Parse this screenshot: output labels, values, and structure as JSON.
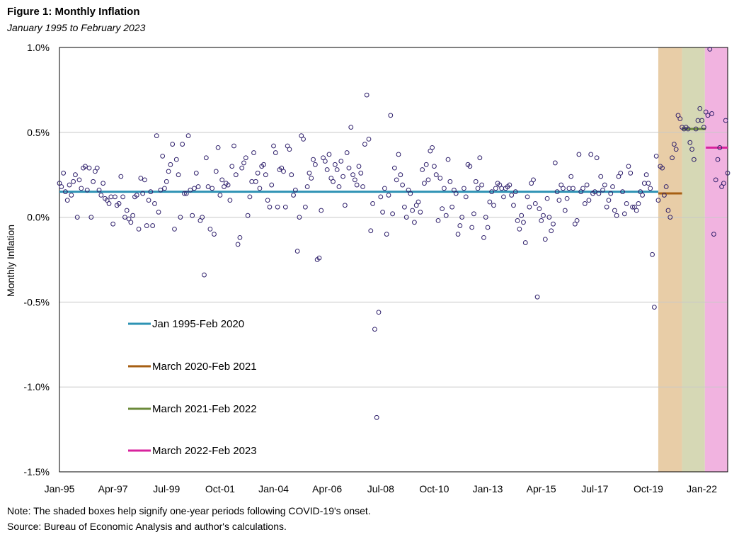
{
  "figure": {
    "title": "Figure 1: Monthly Inflation",
    "subtitle": "January 1995 to February 2023",
    "note": "Note: The shaded boxes help signify one-year periods following COVID-19's onset.",
    "source": "Source: Bureau of Economic Analysis and author's calculations."
  },
  "chart_data": {
    "type": "scatter",
    "title": "Figure 1: Monthly Inflation",
    "subtitle": "January 1995 to February 2023",
    "xlabel": "",
    "ylabel": "Monthly Inflation",
    "x_units": "months since Jan 1995 (0 = Jan 1995)",
    "xlim": [
      0,
      337
    ],
    "ylim": [
      -1.5,
      1.0
    ],
    "y_ticks": [
      1.0,
      0.5,
      0.0,
      -0.5,
      -1.0,
      -1.5
    ],
    "y_tick_labels": [
      "1.0%",
      "0.5%",
      "0.0%",
      "-0.5%",
      "-1.0%",
      "-1.5%"
    ],
    "x_ticks": [
      0,
      27,
      54,
      81,
      108,
      135,
      162,
      189,
      216,
      243,
      270,
      297,
      324
    ],
    "x_tick_labels": [
      "Jan-95",
      "Apr-97",
      "Jul-99",
      "Oct-01",
      "Jan-04",
      "Apr-06",
      "Jul-08",
      "Oct-10",
      "Jan-13",
      "Apr-15",
      "Jul-17",
      "Oct-19",
      "Jan-22"
    ],
    "gridlines": "horizontal",
    "legend_position": "lower-left inside plot",
    "marker": {
      "shape": "open-circle",
      "color": "#2e1f6b"
    },
    "shaded_periods": [
      {
        "label": "March 2020-Feb 2021",
        "start": 302,
        "end": 314,
        "color": "#e8cda7"
      },
      {
        "label": "March 2021-Feb 2022",
        "start": 314,
        "end": 325.5,
        "color": "#d6d8b5"
      },
      {
        "label": "March 2022-Feb 2023",
        "start": 325.5,
        "end": 337,
        "color": "#f1b3e0"
      }
    ],
    "average_lines": [
      {
        "label": "Jan 1995-Feb 2020",
        "start": 0,
        "end": 302,
        "value": 0.15,
        "color": "#2e93b4"
      },
      {
        "label": "March 2020-Feb 2021",
        "start": 302,
        "end": 314,
        "value": 0.14,
        "color": "#a65f13"
      },
      {
        "label": "March 2021-Feb 2022",
        "start": 314,
        "end": 326,
        "value": 0.52,
        "color": "#6b8a3a"
      },
      {
        "label": "March 2022-Feb 2023",
        "start": 326,
        "end": 337,
        "value": 0.41,
        "color": "#d8239d"
      }
    ],
    "legend": [
      {
        "label": "Jan 1995-Feb 2020",
        "color": "#2e93b4"
      },
      {
        "label": "March 2020-Feb 2021",
        "color": "#a65f13"
      },
      {
        "label": "March 2021-Feb 2022",
        "color": "#6b8a3a"
      },
      {
        "label": "March 2022-Feb 2023",
        "color": "#d8239d"
      }
    ],
    "points": [
      0.2,
      0.18,
      0.26,
      0.15,
      0.1,
      0.19,
      0.13,
      0.21,
      0.25,
      0.0,
      0.22,
      0.17,
      0.29,
      0.3,
      0.16,
      0.29,
      0.0,
      0.21,
      0.27,
      0.29,
      0.16,
      0.13,
      0.2,
      0.11,
      0.1,
      0.08,
      0.12,
      -0.04,
      0.12,
      0.07,
      0.08,
      0.24,
      0.12,
      0.0,
      0.04,
      -0.01,
      -0.03,
      0.01,
      0.12,
      0.13,
      -0.07,
      0.23,
      0.14,
      0.22,
      -0.05,
      0.1,
      0.15,
      -0.05,
      0.08,
      0.48,
      0.03,
      0.16,
      0.36,
      0.17,
      0.21,
      0.27,
      0.31,
      0.43,
      -0.07,
      0.34,
      0.25,
      0.0,
      0.43,
      0.14,
      0.14,
      0.48,
      0.16,
      0.01,
      0.17,
      0.26,
      0.18,
      -0.02,
      0.0,
      -0.34,
      0.35,
      0.18,
      -0.07,
      0.17,
      -0.1,
      0.27,
      0.41,
      0.13,
      0.22,
      0.18,
      0.2,
      0.19,
      0.1,
      0.3,
      0.42,
      0.25,
      -0.16,
      -0.12,
      0.29,
      0.32,
      0.35,
      0.01,
      0.12,
      0.21,
      0.38,
      0.21,
      0.26,
      0.17,
      0.3,
      0.31,
      0.25,
      0.1,
      0.06,
      0.19,
      0.42,
      0.38,
      0.06,
      0.28,
      0.29,
      0.27,
      0.06,
      0.42,
      0.4,
      0.25,
      0.13,
      0.16,
      -0.2,
      0.0,
      0.48,
      0.46,
      0.06,
      0.18,
      0.26,
      0.23,
      0.34,
      0.31,
      -0.25,
      -0.24,
      0.04,
      0.35,
      0.33,
      0.28,
      0.37,
      0.23,
      0.21,
      0.31,
      0.28,
      0.18,
      0.33,
      0.24,
      0.07,
      0.38,
      0.29,
      0.53,
      0.25,
      0.22,
      0.19,
      0.3,
      0.26,
      0.18,
      0.43,
      0.72,
      0.46,
      -0.08,
      0.08,
      -0.66,
      -1.18,
      -0.56,
      0.12,
      0.03,
      0.17,
      -0.1,
      0.13,
      0.6,
      0.02,
      0.29,
      0.22,
      0.37,
      0.25,
      0.19,
      0.06,
      0.0,
      0.16,
      0.14,
      0.04,
      -0.03,
      0.07,
      0.09,
      0.03,
      0.28,
      0.2,
      0.31,
      0.22,
      0.39,
      0.41,
      0.3,
      0.25,
      -0.02,
      0.23,
      0.05,
      0.17,
      0.01,
      0.34,
      0.21,
      0.06,
      0.16,
      0.14,
      -0.1,
      -0.05,
      0.0,
      0.17,
      0.12,
      0.31,
      0.3,
      -0.06,
      0.02,
      0.21,
      0.17,
      0.35,
      0.19,
      -0.12,
      0.0,
      -0.06,
      0.09,
      0.15,
      0.07,
      0.17,
      0.2,
      0.19,
      0.17,
      0.12,
      0.17,
      0.18,
      0.19,
      0.13,
      0.07,
      0.15,
      -0.02,
      -0.07,
      0.01,
      -0.03,
      -0.15,
      0.12,
      0.06,
      0.2,
      0.22,
      0.08,
      -0.47,
      0.05,
      -0.02,
      0.01,
      -0.13,
      0.11,
      0.0,
      -0.08,
      -0.04,
      0.32,
      0.15,
      0.1,
      0.19,
      0.17,
      0.04,
      0.11,
      0.17,
      0.24,
      0.17,
      -0.04,
      -0.02,
      0.37,
      0.15,
      0.17,
      0.08,
      0.19,
      0.1,
      0.37,
      0.14,
      0.15,
      0.35,
      0.14,
      0.24,
      0.16,
      0.19,
      0.06,
      0.1,
      0.14,
      0.18,
      0.04,
      0.01,
      0.24,
      0.26,
      0.15,
      0.02,
      0.08,
      0.3,
      0.26,
      0.06,
      0.06,
      0.04,
      0.08,
      0.15,
      0.13,
      0.2,
      0.25,
      0.2,
      0.17,
      -0.22,
      -0.53,
      0.36,
      0.1,
      0.3,
      0.29,
      0.13,
      0.18,
      0.04,
      0.0,
      0.35,
      0.43,
      0.4,
      0.6,
      0.58,
      0.53,
      0.52,
      0.53,
      0.52,
      0.44,
      0.4,
      0.34,
      0.52,
      0.57,
      0.64,
      0.57,
      0.53,
      0.62,
      0.6,
      0.99,
      0.61,
      -0.1,
      0.22,
      0.34,
      0.41,
      0.18,
      0.2,
      0.57,
      0.26
    ]
  }
}
